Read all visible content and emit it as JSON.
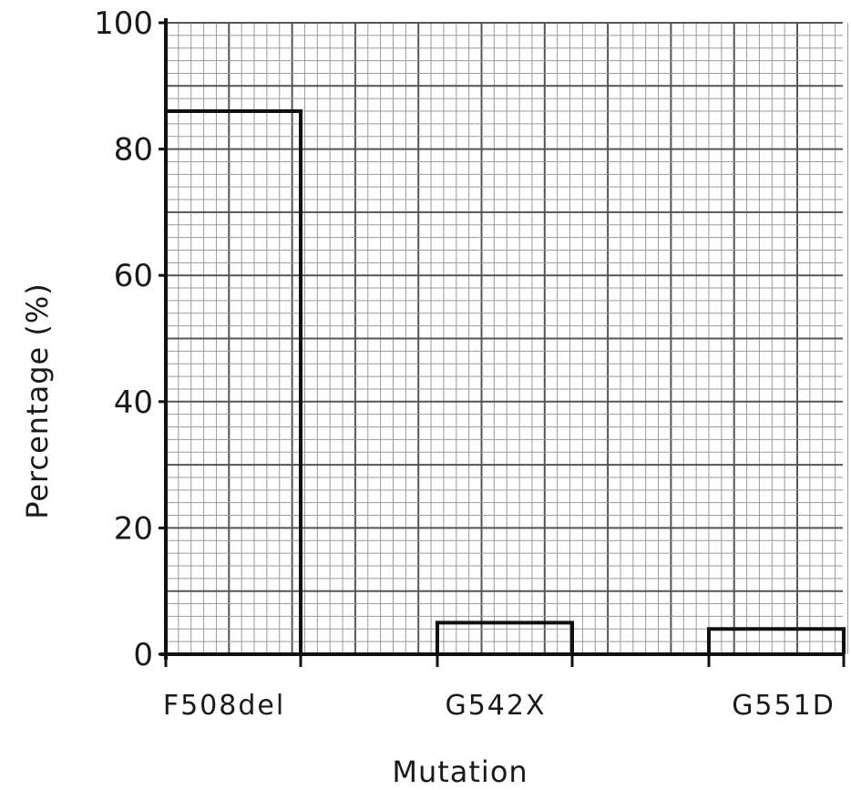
{
  "chart_data": {
    "type": "bar",
    "title": "",
    "xlabel": "Mutation",
    "ylabel": "Percentage (%)",
    "categories": [
      "F508del",
      "G542X",
      "G551D"
    ],
    "values": [
      86,
      5,
      4
    ],
    "ylim": [
      0,
      100
    ],
    "yticks": [
      "0",
      "20",
      "40",
      "60",
      "80",
      "100"
    ],
    "grid": true,
    "style": "hand-drawn on graph paper"
  }
}
